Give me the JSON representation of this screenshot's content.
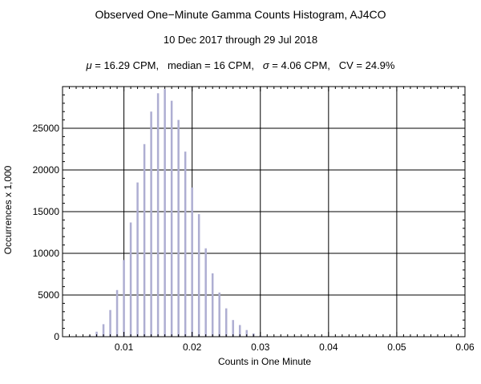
{
  "chart_data": {
    "type": "bar",
    "title": "Observed One−Minute Gamma Counts Histogram, AJ4CO",
    "subtitle": "10 Dec 2017 through 29 Jul 2018",
    "stats": {
      "mu_symbol": "μ",
      "mu_value": " = 16.29 CPM,",
      "median_text": "median = 16 CPM,",
      "sigma_symbol": "σ",
      "sigma_value": " = 4.06 CPM,",
      "cv_text": "CV = 24.9%"
    },
    "xlabel": "Counts in One Minute",
    "ylabel": "Occurrences x 1,000",
    "xlim": [
      0.001,
      0.06
    ],
    "ylim": [
      0,
      30000
    ],
    "xticks": [
      0.01,
      0.02,
      0.03,
      0.04,
      0.05,
      0.06
    ],
    "xtick_labels": [
      "0.01",
      "0.02",
      "0.03",
      "0.04",
      "0.05",
      "0.06"
    ],
    "yticks": [
      0,
      5000,
      10000,
      15000,
      20000,
      25000
    ],
    "ytick_labels": [
      "0",
      "5000",
      "10000",
      "15000",
      "20000",
      "25000"
    ],
    "grid": true,
    "bar_color": "#aeaed2",
    "x": [
      0.004,
      0.005,
      0.006,
      0.007,
      0.008,
      0.009,
      0.01,
      0.011,
      0.012,
      0.013,
      0.014,
      0.015,
      0.016,
      0.017,
      0.018,
      0.019,
      0.02,
      0.021,
      0.022,
      0.023,
      0.024,
      0.025,
      0.026,
      0.027,
      0.028,
      0.029,
      0.03,
      0.031
    ],
    "values": [
      50,
      150,
      600,
      1500,
      3200,
      5600,
      9200,
      13700,
      18500,
      23100,
      27000,
      29200,
      29700,
      28300,
      26000,
      22200,
      17900,
      14700,
      10600,
      7600,
      5300,
      3400,
      2000,
      1400,
      800,
      400,
      150,
      50
    ]
  }
}
